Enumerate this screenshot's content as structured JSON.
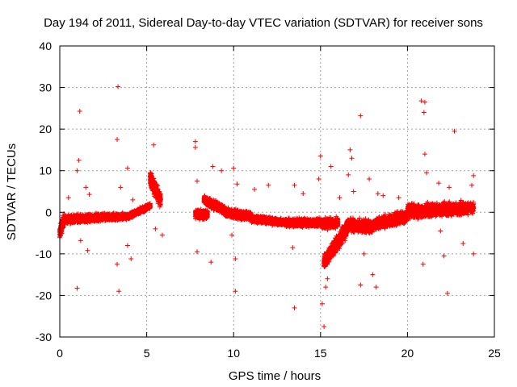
{
  "chart_data": {
    "type": "scatter",
    "title": "Day 194 of 2011, Sidereal Day-to-day VTEC variation (SDTVAR) for receiver sons",
    "xlabel": "GPS time / hours",
    "ylabel": "SDTVAR / TECUs",
    "xlim": [
      0,
      25
    ],
    "ylim": [
      -30,
      40
    ],
    "xticks": [
      0,
      5,
      10,
      15,
      20,
      25
    ],
    "yticks": [
      -30,
      -20,
      -10,
      0,
      10,
      20,
      30,
      40
    ],
    "grid": true,
    "marker": "+",
    "color": "#ff0000",
    "band_density_per_hour": 60,
    "bands": [
      {
        "x": [
          0.0,
          0.25
        ],
        "y": [
          -5.0,
          -1.5
        ],
        "spread": 2.8
      },
      {
        "x": [
          0.25,
          2.5
        ],
        "y": [
          -1.8,
          -1.2
        ],
        "spread": 1.6
      },
      {
        "x": [
          2.5,
          4.0
        ],
        "y": [
          -1.2,
          -1.0
        ],
        "spread": 1.3
      },
      {
        "x": [
          4.0,
          5.2
        ],
        "y": [
          -0.8,
          1.5
        ],
        "spread": 1.2
      },
      {
        "x": [
          5.2,
          5.8
        ],
        "y": [
          8.0,
          3.0
        ],
        "spread": 3.5
      },
      {
        "x": [
          7.8,
          8.5
        ],
        "y": [
          -0.5,
          -0.5
        ],
        "spread": 1.8
      },
      {
        "x": [
          8.3,
          9.5
        ],
        "y": [
          3.0,
          0.5
        ],
        "spread": 2.0
      },
      {
        "x": [
          9.5,
          11.0
        ],
        "y": [
          0.0,
          -1.0
        ],
        "spread": 1.8
      },
      {
        "x": [
          11.0,
          13.0
        ],
        "y": [
          -1.5,
          -2.5
        ],
        "spread": 1.4
      },
      {
        "x": [
          13.0,
          15.0
        ],
        "y": [
          -2.5,
          -2.5
        ],
        "spread": 1.6
      },
      {
        "x": [
          15.0,
          16.0
        ],
        "y": [
          -2.8,
          -2.5
        ],
        "spread": 2.0
      },
      {
        "x": [
          15.2,
          16.5
        ],
        "y": [
          -12.0,
          -4.0
        ],
        "spread": 3.0
      },
      {
        "x": [
          16.5,
          18.0
        ],
        "y": [
          -3.0,
          -3.5
        ],
        "spread": 2.6
      },
      {
        "x": [
          18.0,
          20.0
        ],
        "y": [
          -3.0,
          -1.0
        ],
        "spread": 2.4
      },
      {
        "x": [
          20.0,
          21.0
        ],
        "y": [
          0.5,
          0.0
        ],
        "spread": 2.8
      },
      {
        "x": [
          21.0,
          23.8
        ],
        "y": [
          0.5,
          1.0
        ],
        "spread": 2.6
      }
    ],
    "outliers": [
      [
        0.5,
        3.5
      ],
      [
        0.8,
        -2.0
      ],
      [
        1.0,
        10.0
      ],
      [
        1.1,
        12.5
      ],
      [
        1.15,
        24.3
      ],
      [
        1.0,
        -18.3
      ],
      [
        1.2,
        -6.8
      ],
      [
        1.5,
        6.0
      ],
      [
        1.6,
        -9.2
      ],
      [
        1.7,
        4.3
      ],
      [
        3.35,
        30.2
      ],
      [
        3.3,
        17.5
      ],
      [
        3.4,
        -19.0
      ],
      [
        3.3,
        -12.5
      ],
      [
        3.5,
        6.0
      ],
      [
        3.9,
        10.6
      ],
      [
        3.9,
        -8.0
      ],
      [
        4.1,
        -11.2
      ],
      [
        4.2,
        3.0
      ],
      [
        5.4,
        16.2
      ],
      [
        5.5,
        -4.0
      ],
      [
        5.9,
        -5.5
      ],
      [
        7.8,
        17.0
      ],
      [
        7.8,
        15.6
      ],
      [
        7.9,
        7.5
      ],
      [
        7.9,
        -9.5
      ],
      [
        8.7,
        -12.0
      ],
      [
        8.8,
        11.0
      ],
      [
        9.3,
        10.0
      ],
      [
        9.9,
        -5.5
      ],
      [
        10.1,
        -19.0
      ],
      [
        10.1,
        -11.2
      ],
      [
        10.0,
        10.6
      ],
      [
        10.2,
        6.8
      ],
      [
        11.2,
        5.5
      ],
      [
        12.0,
        6.5
      ],
      [
        13.5,
        -23.0
      ],
      [
        13.4,
        -8.5
      ],
      [
        13.5,
        6.5
      ],
      [
        14.0,
        4.5
      ],
      [
        15.0,
        13.5
      ],
      [
        14.9,
        8.0
      ],
      [
        15.2,
        -27.5
      ],
      [
        15.1,
        -22.0
      ],
      [
        15.3,
        -18.0
      ],
      [
        15.4,
        -16.0
      ],
      [
        15.6,
        11.0
      ],
      [
        16.1,
        3.5
      ],
      [
        16.7,
        15.0
      ],
      [
        16.8,
        13.0
      ],
      [
        16.6,
        9.0
      ],
      [
        16.9,
        5.0
      ],
      [
        17.3,
        23.2
      ],
      [
        17.3,
        -17.5
      ],
      [
        17.5,
        -10.0
      ],
      [
        17.8,
        8.0
      ],
      [
        18.0,
        -15.0
      ],
      [
        18.2,
        -18.0
      ],
      [
        18.3,
        4.5
      ],
      [
        18.6,
        4.0
      ],
      [
        19.5,
        3.5
      ],
      [
        20.8,
        26.8
      ],
      [
        21.0,
        26.5
      ],
      [
        20.95,
        24.0
      ],
      [
        21.0,
        14.0
      ],
      [
        20.9,
        -12.5
      ],
      [
        21.1,
        9.5
      ],
      [
        21.8,
        7.0
      ],
      [
        21.9,
        -4.5
      ],
      [
        22.1,
        -10.5
      ],
      [
        22.3,
        -19.5
      ],
      [
        22.7,
        19.5
      ],
      [
        22.4,
        6.0
      ],
      [
        23.2,
        -7.5
      ],
      [
        23.8,
        8.8
      ],
      [
        23.8,
        -10.0
      ],
      [
        23.7,
        6.5
      ]
    ]
  }
}
